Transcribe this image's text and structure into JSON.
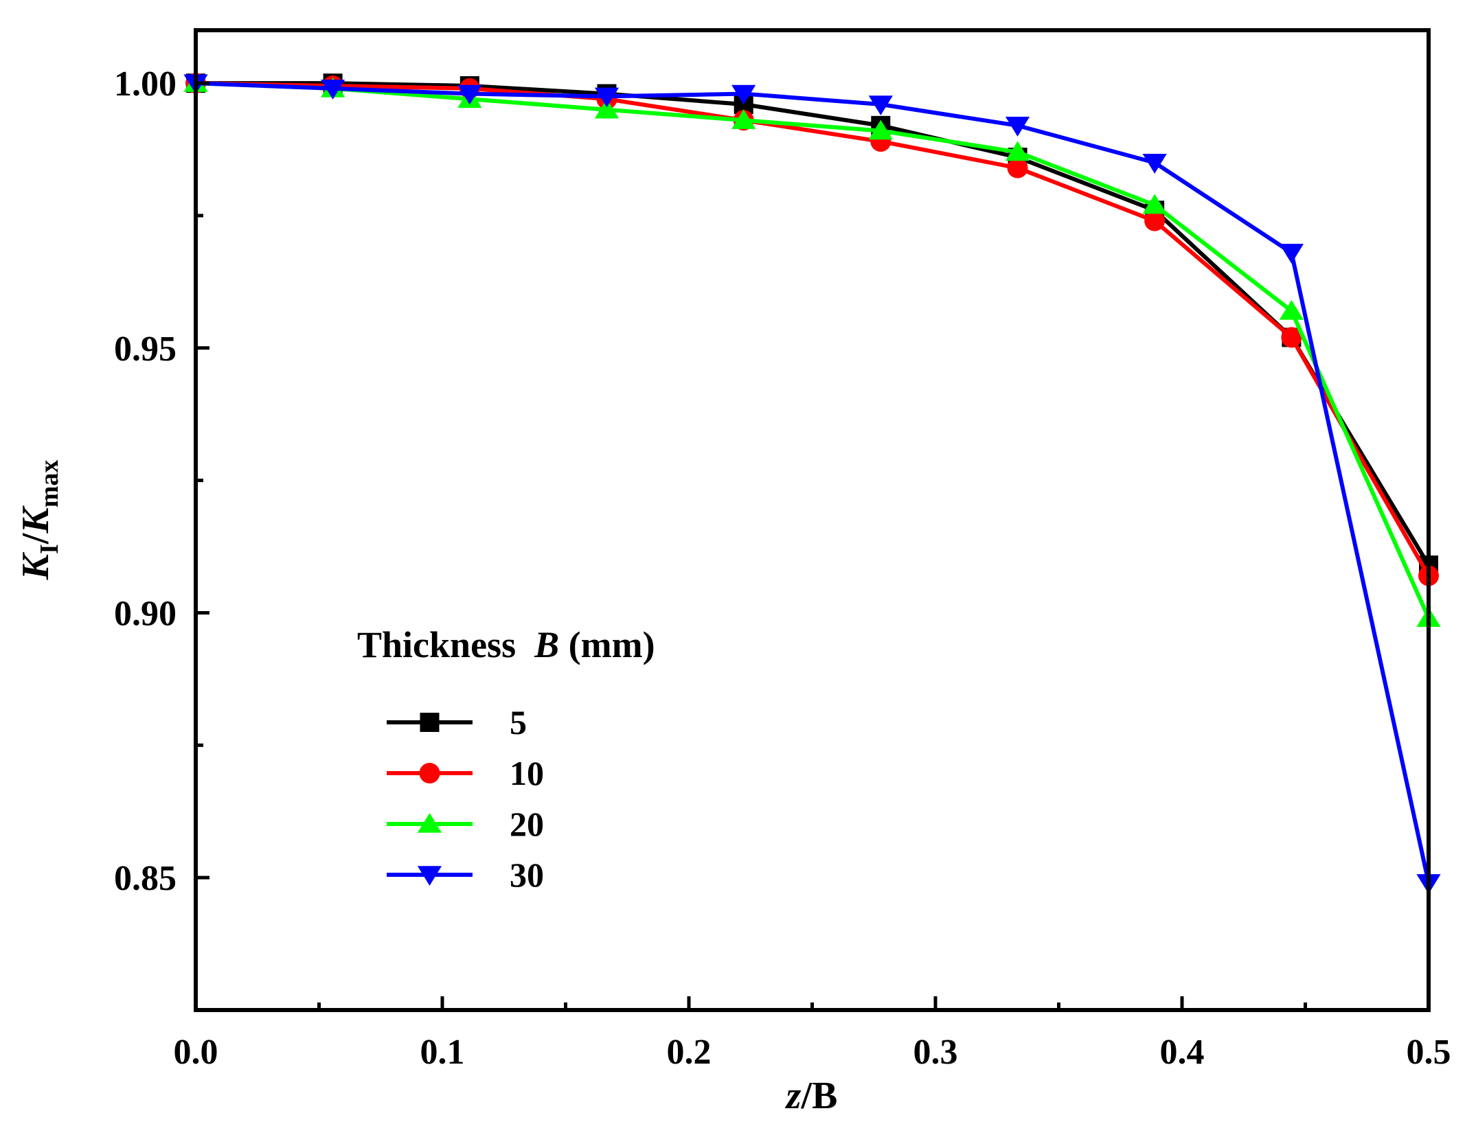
{
  "chart_data": {
    "type": "line",
    "title": "",
    "xlabel": {
      "italic": "z",
      "rest": "/B"
    },
    "ylabel": {
      "k1": "K",
      "sub1": "I",
      "slash": "/",
      "k2": "K",
      "sub2": "max"
    },
    "xlim": [
      0.0,
      0.5
    ],
    "ylim": [
      0.825,
      1.01
    ],
    "xticks": [
      0.0,
      0.1,
      0.2,
      0.3,
      0.4,
      0.5
    ],
    "xtick_labels": [
      "0.0",
      "0.1",
      "0.2",
      "0.3",
      "0.4",
      "0.5"
    ],
    "x_minor_ticks": [
      0.05,
      0.15,
      0.25,
      0.35,
      0.45
    ],
    "yticks": [
      0.85,
      0.9,
      0.95,
      1.0
    ],
    "ytick_labels": [
      "0.85",
      "0.90",
      "0.95",
      "1.00"
    ],
    "y_minor_ticks": [
      0.875,
      0.925,
      0.975
    ],
    "grid": false,
    "legend": {
      "placement": "center-left",
      "title_parts": {
        "pre": "Thickness  ",
        "italic": "B",
        "post": " (mm)"
      }
    },
    "x": [
      0.0,
      0.0556,
      0.1111,
      0.1667,
      0.2222,
      0.2778,
      0.3333,
      0.3889,
      0.4444,
      0.5
    ],
    "series": [
      {
        "name": "5",
        "color": "#000000",
        "marker": "square",
        "values": [
          1.0,
          1.0,
          0.9995,
          0.998,
          0.996,
          0.992,
          0.986,
          0.976,
          0.952,
          0.909
        ]
      },
      {
        "name": "10",
        "color": "#ff0000",
        "marker": "circle",
        "values": [
          1.0,
          0.9995,
          0.999,
          0.997,
          0.993,
          0.989,
          0.984,
          0.974,
          0.952,
          0.907
        ]
      },
      {
        "name": "20",
        "color": "#00ff00",
        "marker": "triangle-up",
        "values": [
          1.0,
          0.999,
          0.997,
          0.995,
          0.993,
          0.991,
          0.987,
          0.977,
          0.957,
          0.899
        ]
      },
      {
        "name": "30",
        "color": "#0000ff",
        "marker": "triangle-down",
        "values": [
          1.0,
          0.999,
          0.998,
          0.9975,
          0.998,
          0.996,
          0.992,
          0.985,
          0.968,
          0.849
        ]
      }
    ]
  }
}
